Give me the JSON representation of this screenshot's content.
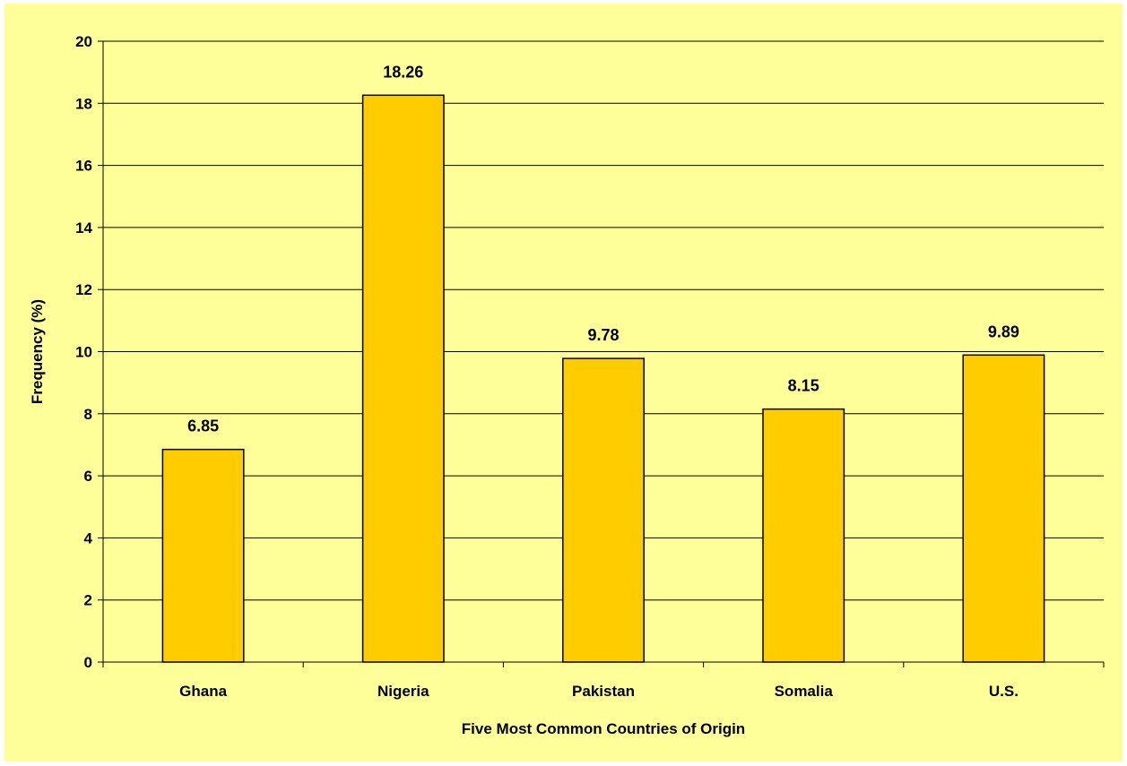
{
  "chart_data": {
    "type": "bar",
    "categories": [
      "Ghana",
      "Nigeria",
      "Pakistan",
      "Somalia",
      "U.S."
    ],
    "values": [
      6.85,
      18.26,
      9.78,
      8.15,
      9.89
    ],
    "data_labels": [
      "6.85",
      "18.26",
      "9.78",
      "8.15",
      "9.89"
    ],
    "xlabel": "Five Most Common Countries of Origin",
    "ylabel": "Frequency (%)",
    "ylim": [
      0,
      20
    ],
    "yticks": [
      0,
      2,
      4,
      6,
      8,
      10,
      12,
      14,
      16,
      18,
      20
    ],
    "grid": true,
    "legend": "none"
  },
  "colors": {
    "background": "#FFFF99",
    "bar_fill": "#FFCC00",
    "bar_stroke": "#000000",
    "gridline": "#000000"
  }
}
